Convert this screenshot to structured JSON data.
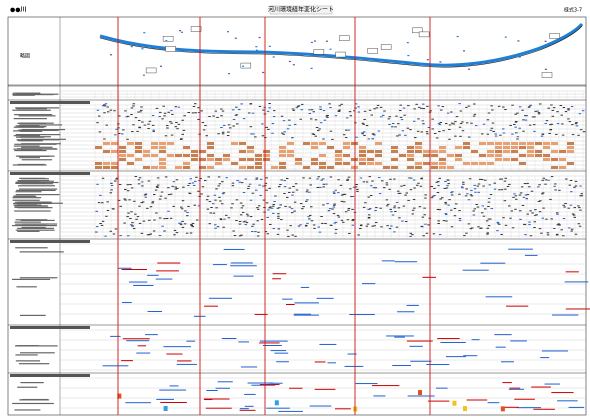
{
  "header": {
    "river": "●●川",
    "title": "河川環境経年変化シート",
    "form": "様式3-7"
  },
  "map": {
    "label": "略図"
  }
}
